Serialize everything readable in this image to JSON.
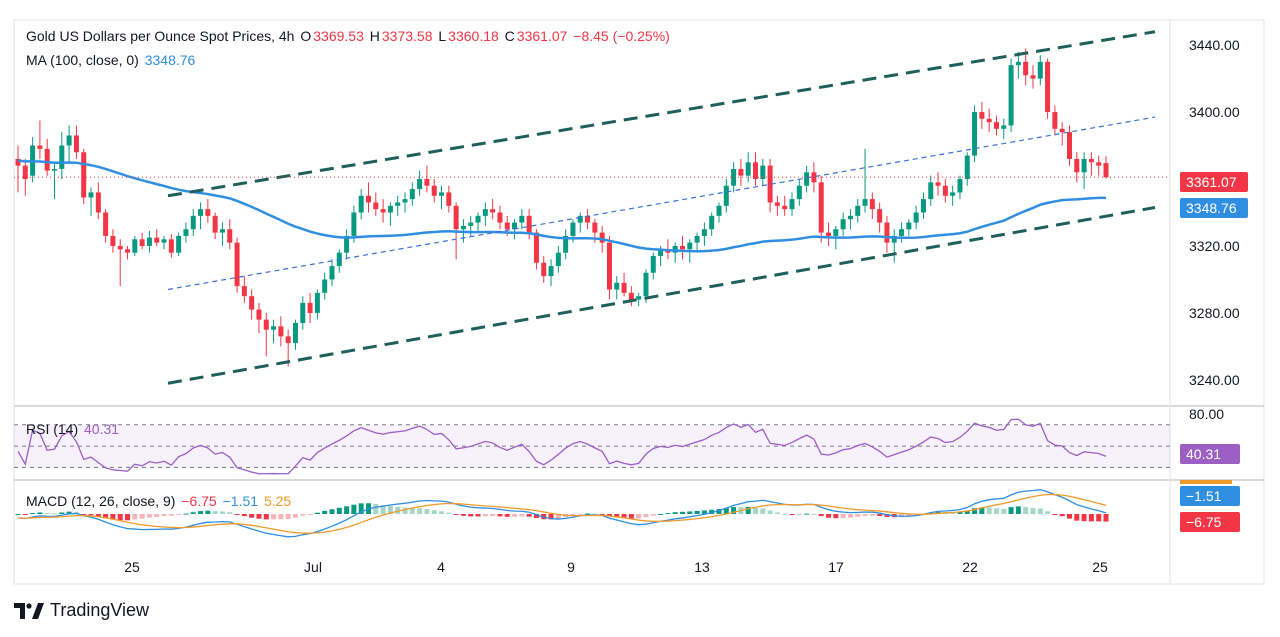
{
  "header": {
    "title": "Gold US Dollars per Ounce Spot Prices, 4h",
    "open_label": "O",
    "open": "3369.53",
    "high_label": "H",
    "high": "3373.58",
    "low_label": "L",
    "low": "3360.18",
    "close_label": "C",
    "close": "3361.07",
    "change": "−8.45 (−0.25%)",
    "ma_label": "MA (100, close, 0)",
    "ma_value": "3348.76"
  },
  "rsi_legend": {
    "label": "RSI (14)",
    "value": "40.31"
  },
  "macd_legend": {
    "label": "MACD (12, 26, close, 9)",
    "hist": "−6.75",
    "macd": "−1.51",
    "signal": "5.25"
  },
  "price_tags": {
    "last": "3361.07",
    "ma": "3348.76"
  },
  "rsi_tags": {
    "top": "80.00",
    "value": "40.31"
  },
  "macd_tags": {
    "macd": "−1.51",
    "hist": "−6.75"
  },
  "brand": "TradingView",
  "colors": {
    "up": "#089981",
    "down": "#f23645",
    "ma": "#2f8ee0",
    "rsi": "#9c5fc4",
    "signal": "#f09a2b",
    "channel": "#1f5f5b"
  },
  "chart_data": {
    "type": "candlestick",
    "timeframe": "4h",
    "x_tick_labels": [
      "25",
      "Jul",
      "4",
      "9",
      "13",
      "17",
      "22",
      "25"
    ],
    "y_tick_labels": [
      "3440.00",
      "3400.00",
      "3320.00",
      "3280.00",
      "3240.00"
    ],
    "ylim": [
      3225,
      3455
    ],
    "last_close": 3361.07,
    "ma100_last": 3348.76,
    "rsi_last": 40.31,
    "rsi_levels": [
      30,
      50,
      70
    ],
    "rsi_ylim": [
      20,
      82
    ],
    "macd_last": {
      "macd": -1.51,
      "signal": 5.25,
      "hist": -6.75
    },
    "candles": [
      [
        3372,
        3380,
        3352,
        3368
      ],
      [
        3368,
        3372,
        3350,
        3360
      ],
      [
        3362,
        3385,
        3358,
        3380
      ],
      [
        3380,
        3395,
        3372,
        3378
      ],
      [
        3378,
        3384,
        3362,
        3365
      ],
      [
        3365,
        3370,
        3348,
        3366
      ],
      [
        3366,
        3388,
        3360,
        3380
      ],
      [
        3380,
        3392,
        3370,
        3386
      ],
      [
        3386,
        3392,
        3372,
        3376
      ],
      [
        3376,
        3378,
        3345,
        3349
      ],
      [
        3349,
        3355,
        3338,
        3352
      ],
      [
        3352,
        3358,
        3336,
        3340
      ],
      [
        3340,
        3342,
        3322,
        3326
      ],
      [
        3326,
        3330,
        3316,
        3320
      ],
      [
        3320,
        3324,
        3296,
        3318
      ],
      [
        3318,
        3320,
        3312,
        3316
      ],
      [
        3316,
        3326,
        3314,
        3324
      ],
      [
        3324,
        3328,
        3318,
        3320
      ],
      [
        3320,
        3329,
        3316,
        3325
      ],
      [
        3325,
        3330,
        3320,
        3322
      ],
      [
        3322,
        3326,
        3318,
        3324
      ],
      [
        3324,
        3327,
        3313,
        3316
      ],
      [
        3316,
        3328,
        3314,
        3326
      ],
      [
        3326,
        3334,
        3322,
        3330
      ],
      [
        3330,
        3342,
        3326,
        3338
      ],
      [
        3338,
        3346,
        3330,
        3342
      ],
      [
        3342,
        3348,
        3334,
        3338
      ],
      [
        3338,
        3340,
        3324,
        3328
      ],
      [
        3328,
        3334,
        3320,
        3330
      ],
      [
        3330,
        3336,
        3318,
        3322
      ],
      [
        3322,
        3325,
        3292,
        3296
      ],
      [
        3296,
        3302,
        3286,
        3290
      ],
      [
        3290,
        3294,
        3276,
        3282
      ],
      [
        3282,
        3286,
        3268,
        3276
      ],
      [
        3276,
        3280,
        3254,
        3270
      ],
      [
        3270,
        3276,
        3262,
        3272
      ],
      [
        3272,
        3278,
        3260,
        3266
      ],
      [
        3266,
        3270,
        3248,
        3262
      ],
      [
        3262,
        3276,
        3258,
        3274
      ],
      [
        3274,
        3290,
        3270,
        3286
      ],
      [
        3286,
        3292,
        3274,
        3280
      ],
      [
        3280,
        3294,
        3276,
        3292
      ],
      [
        3292,
        3304,
        3288,
        3300
      ],
      [
        3300,
        3312,
        3296,
        3308
      ],
      [
        3308,
        3318,
        3304,
        3316
      ],
      [
        3316,
        3330,
        3312,
        3326
      ],
      [
        3326,
        3344,
        3322,
        3340
      ],
      [
        3340,
        3354,
        3336,
        3350
      ],
      [
        3350,
        3358,
        3340,
        3346
      ],
      [
        3346,
        3352,
        3338,
        3342
      ],
      [
        3342,
        3348,
        3334,
        3340
      ],
      [
        3340,
        3346,
        3332,
        3344
      ],
      [
        3344,
        3350,
        3338,
        3346
      ],
      [
        3346,
        3352,
        3340,
        3348
      ],
      [
        3348,
        3358,
        3344,
        3354
      ],
      [
        3354,
        3365,
        3350,
        3360
      ],
      [
        3360,
        3368,
        3352,
        3356
      ],
      [
        3356,
        3360,
        3346,
        3350
      ],
      [
        3350,
        3356,
        3342,
        3352
      ],
      [
        3352,
        3356,
        3340,
        3344
      ],
      [
        3344,
        3346,
        3312,
        3330
      ],
      [
        3330,
        3336,
        3322,
        3332
      ],
      [
        3332,
        3338,
        3326,
        3334
      ],
      [
        3334,
        3340,
        3328,
        3338
      ],
      [
        3338,
        3346,
        3332,
        3342
      ],
      [
        3342,
        3348,
        3336,
        3340
      ],
      [
        3340,
        3344,
        3330,
        3334
      ],
      [
        3334,
        3338,
        3326,
        3330
      ],
      [
        3330,
        3336,
        3324,
        3334
      ],
      [
        3334,
        3342,
        3330,
        3338
      ],
      [
        3338,
        3342,
        3324,
        3328
      ],
      [
        3328,
        3330,
        3306,
        3310
      ],
      [
        3310,
        3314,
        3298,
        3302
      ],
      [
        3302,
        3312,
        3296,
        3308
      ],
      [
        3308,
        3320,
        3304,
        3316
      ],
      [
        3316,
        3330,
        3312,
        3326
      ],
      [
        3326,
        3336,
        3322,
        3334
      ],
      [
        3334,
        3340,
        3328,
        3338
      ],
      [
        3338,
        3342,
        3330,
        3334
      ],
      [
        3334,
        3336,
        3322,
        3328
      ],
      [
        3328,
        3332,
        3316,
        3322
      ],
      [
        3322,
        3326,
        3288,
        3294
      ],
      [
        3294,
        3302,
        3288,
        3298
      ],
      [
        3298,
        3304,
        3290,
        3292
      ],
      [
        3292,
        3296,
        3284,
        3288
      ],
      [
        3288,
        3292,
        3284,
        3290
      ],
      [
        3290,
        3306,
        3286,
        3304
      ],
      [
        3304,
        3316,
        3300,
        3314
      ],
      [
        3314,
        3320,
        3308,
        3318
      ],
      [
        3318,
        3324,
        3312,
        3316
      ],
      [
        3316,
        3322,
        3310,
        3320
      ],
      [
        3320,
        3326,
        3312,
        3318
      ],
      [
        3318,
        3324,
        3310,
        3322
      ],
      [
        3322,
        3328,
        3316,
        3326
      ],
      [
        3326,
        3334,
        3320,
        3330
      ],
      [
        3330,
        3340,
        3326,
        3338
      ],
      [
        3338,
        3346,
        3334,
        3344
      ],
      [
        3344,
        3360,
        3340,
        3356
      ],
      [
        3356,
        3370,
        3352,
        3366
      ],
      [
        3366,
        3372,
        3356,
        3362
      ],
      [
        3362,
        3376,
        3358,
        3370
      ],
      [
        3370,
        3376,
        3356,
        3360
      ],
      [
        3360,
        3372,
        3356,
        3368
      ],
      [
        3368,
        3372,
        3340,
        3346
      ],
      [
        3346,
        3350,
        3338,
        3344
      ],
      [
        3344,
        3350,
        3338,
        3342
      ],
      [
        3342,
        3352,
        3338,
        3348
      ],
      [
        3348,
        3360,
        3344,
        3356
      ],
      [
        3356,
        3368,
        3352,
        3364
      ],
      [
        3364,
        3370,
        3352,
        3358
      ],
      [
        3358,
        3362,
        3322,
        3328
      ],
      [
        3328,
        3334,
        3320,
        3326
      ],
      [
        3326,
        3332,
        3318,
        3330
      ],
      [
        3330,
        3340,
        3326,
        3336
      ],
      [
        3336,
        3342,
        3330,
        3338
      ],
      [
        3338,
        3348,
        3334,
        3344
      ],
      [
        3344,
        3378,
        3340,
        3348
      ],
      [
        3348,
        3352,
        3336,
        3342
      ],
      [
        3342,
        3346,
        3328,
        3334
      ],
      [
        3334,
        3338,
        3316,
        3322
      ],
      [
        3322,
        3330,
        3310,
        3326
      ],
      [
        3326,
        3334,
        3322,
        3330
      ],
      [
        3330,
        3336,
        3326,
        3334
      ],
      [
        3334,
        3344,
        3330,
        3340
      ],
      [
        3340,
        3352,
        3336,
        3348
      ],
      [
        3348,
        3362,
        3344,
        3358
      ],
      [
        3358,
        3364,
        3350,
        3356
      ],
      [
        3356,
        3360,
        3346,
        3350
      ],
      [
        3350,
        3356,
        3344,
        3352
      ],
      [
        3352,
        3362,
        3348,
        3360
      ],
      [
        3360,
        3376,
        3356,
        3374
      ],
      [
        3374,
        3404,
        3370,
        3400
      ],
      [
        3400,
        3406,
        3390,
        3396
      ],
      [
        3396,
        3402,
        3388,
        3394
      ],
      [
        3394,
        3398,
        3386,
        3390
      ],
      [
        3390,
        3396,
        3384,
        3392
      ],
      [
        3392,
        3432,
        3388,
        3428
      ],
      [
        3428,
        3436,
        3420,
        3430
      ],
      [
        3430,
        3438,
        3416,
        3422
      ],
      [
        3422,
        3428,
        3414,
        3420
      ],
      [
        3420,
        3434,
        3416,
        3430
      ],
      [
        3430,
        3432,
        3396,
        3400
      ],
      [
        3400,
        3404,
        3386,
        3390
      ],
      [
        3390,
        3394,
        3380,
        3388
      ],
      [
        3388,
        3392,
        3368,
        3372
      ],
      [
        3372,
        3376,
        3358,
        3364
      ],
      [
        3364,
        3376,
        3354,
        3372
      ],
      [
        3372,
        3376,
        3362,
        3370
      ],
      [
        3370,
        3374,
        3362,
        3368
      ],
      [
        3369.53,
        3373.58,
        3360.18,
        3361.07
      ]
    ]
  }
}
